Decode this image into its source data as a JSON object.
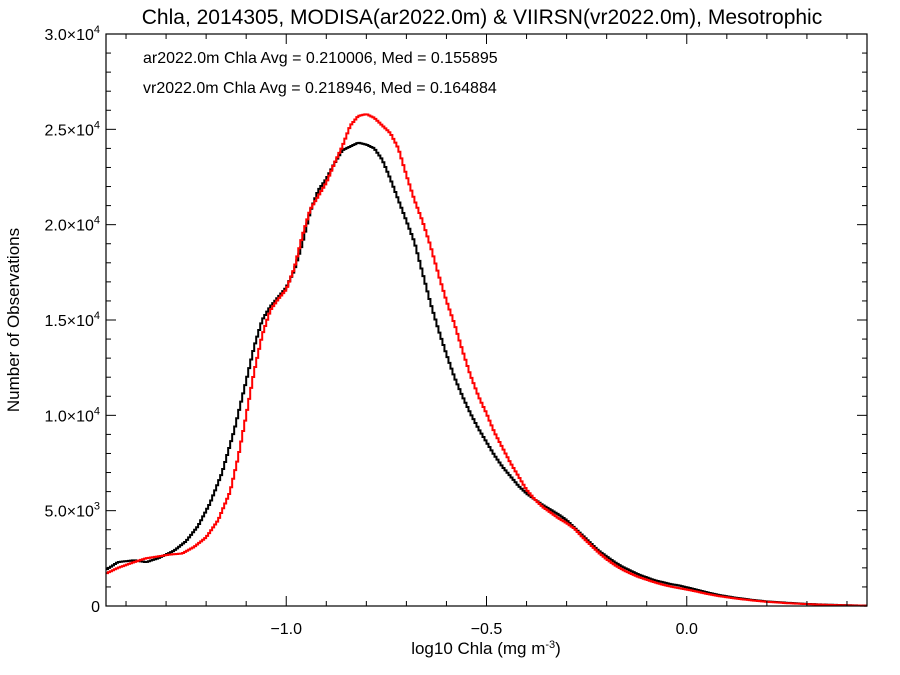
{
  "chart_data": {
    "type": "line",
    "title": "Chla, 2014305, MODISA(ar2022.0m) & VIIRSN(vr2022.0m), Mesotrophic",
    "xlabel_main": "log10 Chla (mg m",
    "xlabel_sup": "-3",
    "xlabel_end": ")",
    "ylabel": "Number of Observations",
    "xlim": [
      -1.45,
      0.45
    ],
    "ylim": [
      0,
      30000
    ],
    "x_ticks": [
      {
        "value": -1.0,
        "label": "−1.0"
      },
      {
        "value": -0.5,
        "label": "−0.5"
      },
      {
        "value": 0.0,
        "label": "0.0"
      }
    ],
    "y_ticks": [
      {
        "value": 0,
        "mant": "0",
        "exp": ""
      },
      {
        "value": 5000,
        "mant": "5.0×10",
        "exp": "3"
      },
      {
        "value": 10000,
        "mant": "1.0×10",
        "exp": "4"
      },
      {
        "value": 15000,
        "mant": "1.5×10",
        "exp": "4"
      },
      {
        "value": 20000,
        "mant": "2.0×10",
        "exp": "4"
      },
      {
        "value": 25000,
        "mant": "2.5×10",
        "exp": "4"
      },
      {
        "value": 30000,
        "mant": "3.0×10",
        "exp": "4"
      }
    ],
    "annotations": [
      {
        "text": "ar2022.0m Chla Avg = 0.210006, Med = 0.155895",
        "color": "#000000"
      },
      {
        "text": "vr2022.0m Chla Avg = 0.218946, Med = 0.164884",
        "color": "#ff0000"
      }
    ],
    "series": [
      {
        "color": "#000000",
        "points": [
          [
            -1.45,
            1900
          ],
          [
            -1.42,
            2300
          ],
          [
            -1.38,
            2400
          ],
          [
            -1.35,
            2300
          ],
          [
            -1.32,
            2500
          ],
          [
            -1.28,
            2900
          ],
          [
            -1.25,
            3400
          ],
          [
            -1.22,
            4200
          ],
          [
            -1.19,
            5400
          ],
          [
            -1.16,
            7000
          ],
          [
            -1.13,
            9200
          ],
          [
            -1.1,
            11800
          ],
          [
            -1.08,
            13600
          ],
          [
            -1.06,
            15000
          ],
          [
            -1.04,
            15700
          ],
          [
            -1.02,
            16200
          ],
          [
            -1.0,
            16700
          ],
          [
            -0.98,
            17600
          ],
          [
            -0.96,
            19000
          ],
          [
            -0.94,
            20700
          ],
          [
            -0.92,
            21800
          ],
          [
            -0.9,
            22400
          ],
          [
            -0.88,
            23200
          ],
          [
            -0.86,
            23900
          ],
          [
            -0.84,
            24100
          ],
          [
            -0.82,
            24300
          ],
          [
            -0.8,
            24200
          ],
          [
            -0.78,
            24000
          ],
          [
            -0.76,
            23400
          ],
          [
            -0.74,
            22400
          ],
          [
            -0.72,
            21300
          ],
          [
            -0.7,
            20200
          ],
          [
            -0.68,
            19100
          ],
          [
            -0.66,
            17500
          ],
          [
            -0.64,
            15900
          ],
          [
            -0.62,
            14500
          ],
          [
            -0.6,
            13200
          ],
          [
            -0.58,
            12000
          ],
          [
            -0.56,
            11000
          ],
          [
            -0.54,
            10100
          ],
          [
            -0.52,
            9300
          ],
          [
            -0.5,
            8600
          ],
          [
            -0.48,
            7900
          ],
          [
            -0.46,
            7300
          ],
          [
            -0.44,
            6800
          ],
          [
            -0.42,
            6300
          ],
          [
            -0.4,
            5900
          ],
          [
            -0.38,
            5600
          ],
          [
            -0.36,
            5300
          ],
          [
            -0.34,
            5050
          ],
          [
            -0.32,
            4800
          ],
          [
            -0.3,
            4500
          ],
          [
            -0.28,
            4100
          ],
          [
            -0.26,
            3700
          ],
          [
            -0.24,
            3300
          ],
          [
            -0.22,
            2900
          ],
          [
            -0.2,
            2600
          ],
          [
            -0.18,
            2300
          ],
          [
            -0.16,
            2050
          ],
          [
            -0.14,
            1850
          ],
          [
            -0.12,
            1650
          ],
          [
            -0.1,
            1500
          ],
          [
            -0.08,
            1350
          ],
          [
            -0.06,
            1250
          ],
          [
            -0.04,
            1150
          ],
          [
            -0.02,
            1080
          ],
          [
            0.0,
            980
          ],
          [
            0.02,
            880
          ],
          [
            0.05,
            720
          ],
          [
            0.08,
            580
          ],
          [
            0.12,
            440
          ],
          [
            0.16,
            330
          ],
          [
            0.2,
            240
          ],
          [
            0.25,
            170
          ],
          [
            0.3,
            110
          ],
          [
            0.35,
            70
          ],
          [
            0.4,
            40
          ],
          [
            0.45,
            20
          ]
        ]
      },
      {
        "color": "#ff0000",
        "points": [
          [
            -1.45,
            1700
          ],
          [
            -1.42,
            2000
          ],
          [
            -1.38,
            2300
          ],
          [
            -1.35,
            2500
          ],
          [
            -1.32,
            2600
          ],
          [
            -1.29,
            2700
          ],
          [
            -1.26,
            2750
          ],
          [
            -1.23,
            3100
          ],
          [
            -1.2,
            3600
          ],
          [
            -1.17,
            4500
          ],
          [
            -1.14,
            6000
          ],
          [
            -1.12,
            7800
          ],
          [
            -1.1,
            10000
          ],
          [
            -1.08,
            12300
          ],
          [
            -1.06,
            14200
          ],
          [
            -1.04,
            15500
          ],
          [
            -1.02,
            16100
          ],
          [
            -1.0,
            16600
          ],
          [
            -0.98,
            17700
          ],
          [
            -0.96,
            19400
          ],
          [
            -0.94,
            20800
          ],
          [
            -0.92,
            21500
          ],
          [
            -0.9,
            22200
          ],
          [
            -0.88,
            23200
          ],
          [
            -0.86,
            24100
          ],
          [
            -0.84,
            25200
          ],
          [
            -0.82,
            25700
          ],
          [
            -0.8,
            25800
          ],
          [
            -0.78,
            25600
          ],
          [
            -0.76,
            25200
          ],
          [
            -0.74,
            24800
          ],
          [
            -0.72,
            24000
          ],
          [
            -0.7,
            22600
          ],
          [
            -0.68,
            21300
          ],
          [
            -0.66,
            20200
          ],
          [
            -0.64,
            18900
          ],
          [
            -0.62,
            17400
          ],
          [
            -0.6,
            16000
          ],
          [
            -0.58,
            14800
          ],
          [
            -0.56,
            13400
          ],
          [
            -0.54,
            12100
          ],
          [
            -0.52,
            11000
          ],
          [
            -0.5,
            10100
          ],
          [
            -0.48,
            9100
          ],
          [
            -0.46,
            8300
          ],
          [
            -0.44,
            7500
          ],
          [
            -0.42,
            6800
          ],
          [
            -0.4,
            6100
          ],
          [
            -0.38,
            5600
          ],
          [
            -0.36,
            5200
          ],
          [
            -0.34,
            4900
          ],
          [
            -0.32,
            4600
          ],
          [
            -0.3,
            4350
          ],
          [
            -0.28,
            4050
          ],
          [
            -0.26,
            3600
          ],
          [
            -0.24,
            3200
          ],
          [
            -0.22,
            2800
          ],
          [
            -0.2,
            2450
          ],
          [
            -0.18,
            2150
          ],
          [
            -0.16,
            1900
          ],
          [
            -0.14,
            1700
          ],
          [
            -0.12,
            1520
          ],
          [
            -0.1,
            1380
          ],
          [
            -0.08,
            1240
          ],
          [
            -0.06,
            1120
          ],
          [
            -0.04,
            1020
          ],
          [
            -0.02,
            940
          ],
          [
            0.0,
            860
          ],
          [
            0.02,
            780
          ],
          [
            0.05,
            640
          ],
          [
            0.08,
            520
          ],
          [
            0.12,
            400
          ],
          [
            0.16,
            300
          ],
          [
            0.2,
            220
          ],
          [
            0.25,
            150
          ],
          [
            0.3,
            100
          ],
          [
            0.35,
            60
          ],
          [
            0.4,
            35
          ],
          [
            0.45,
            18
          ]
        ]
      }
    ]
  }
}
